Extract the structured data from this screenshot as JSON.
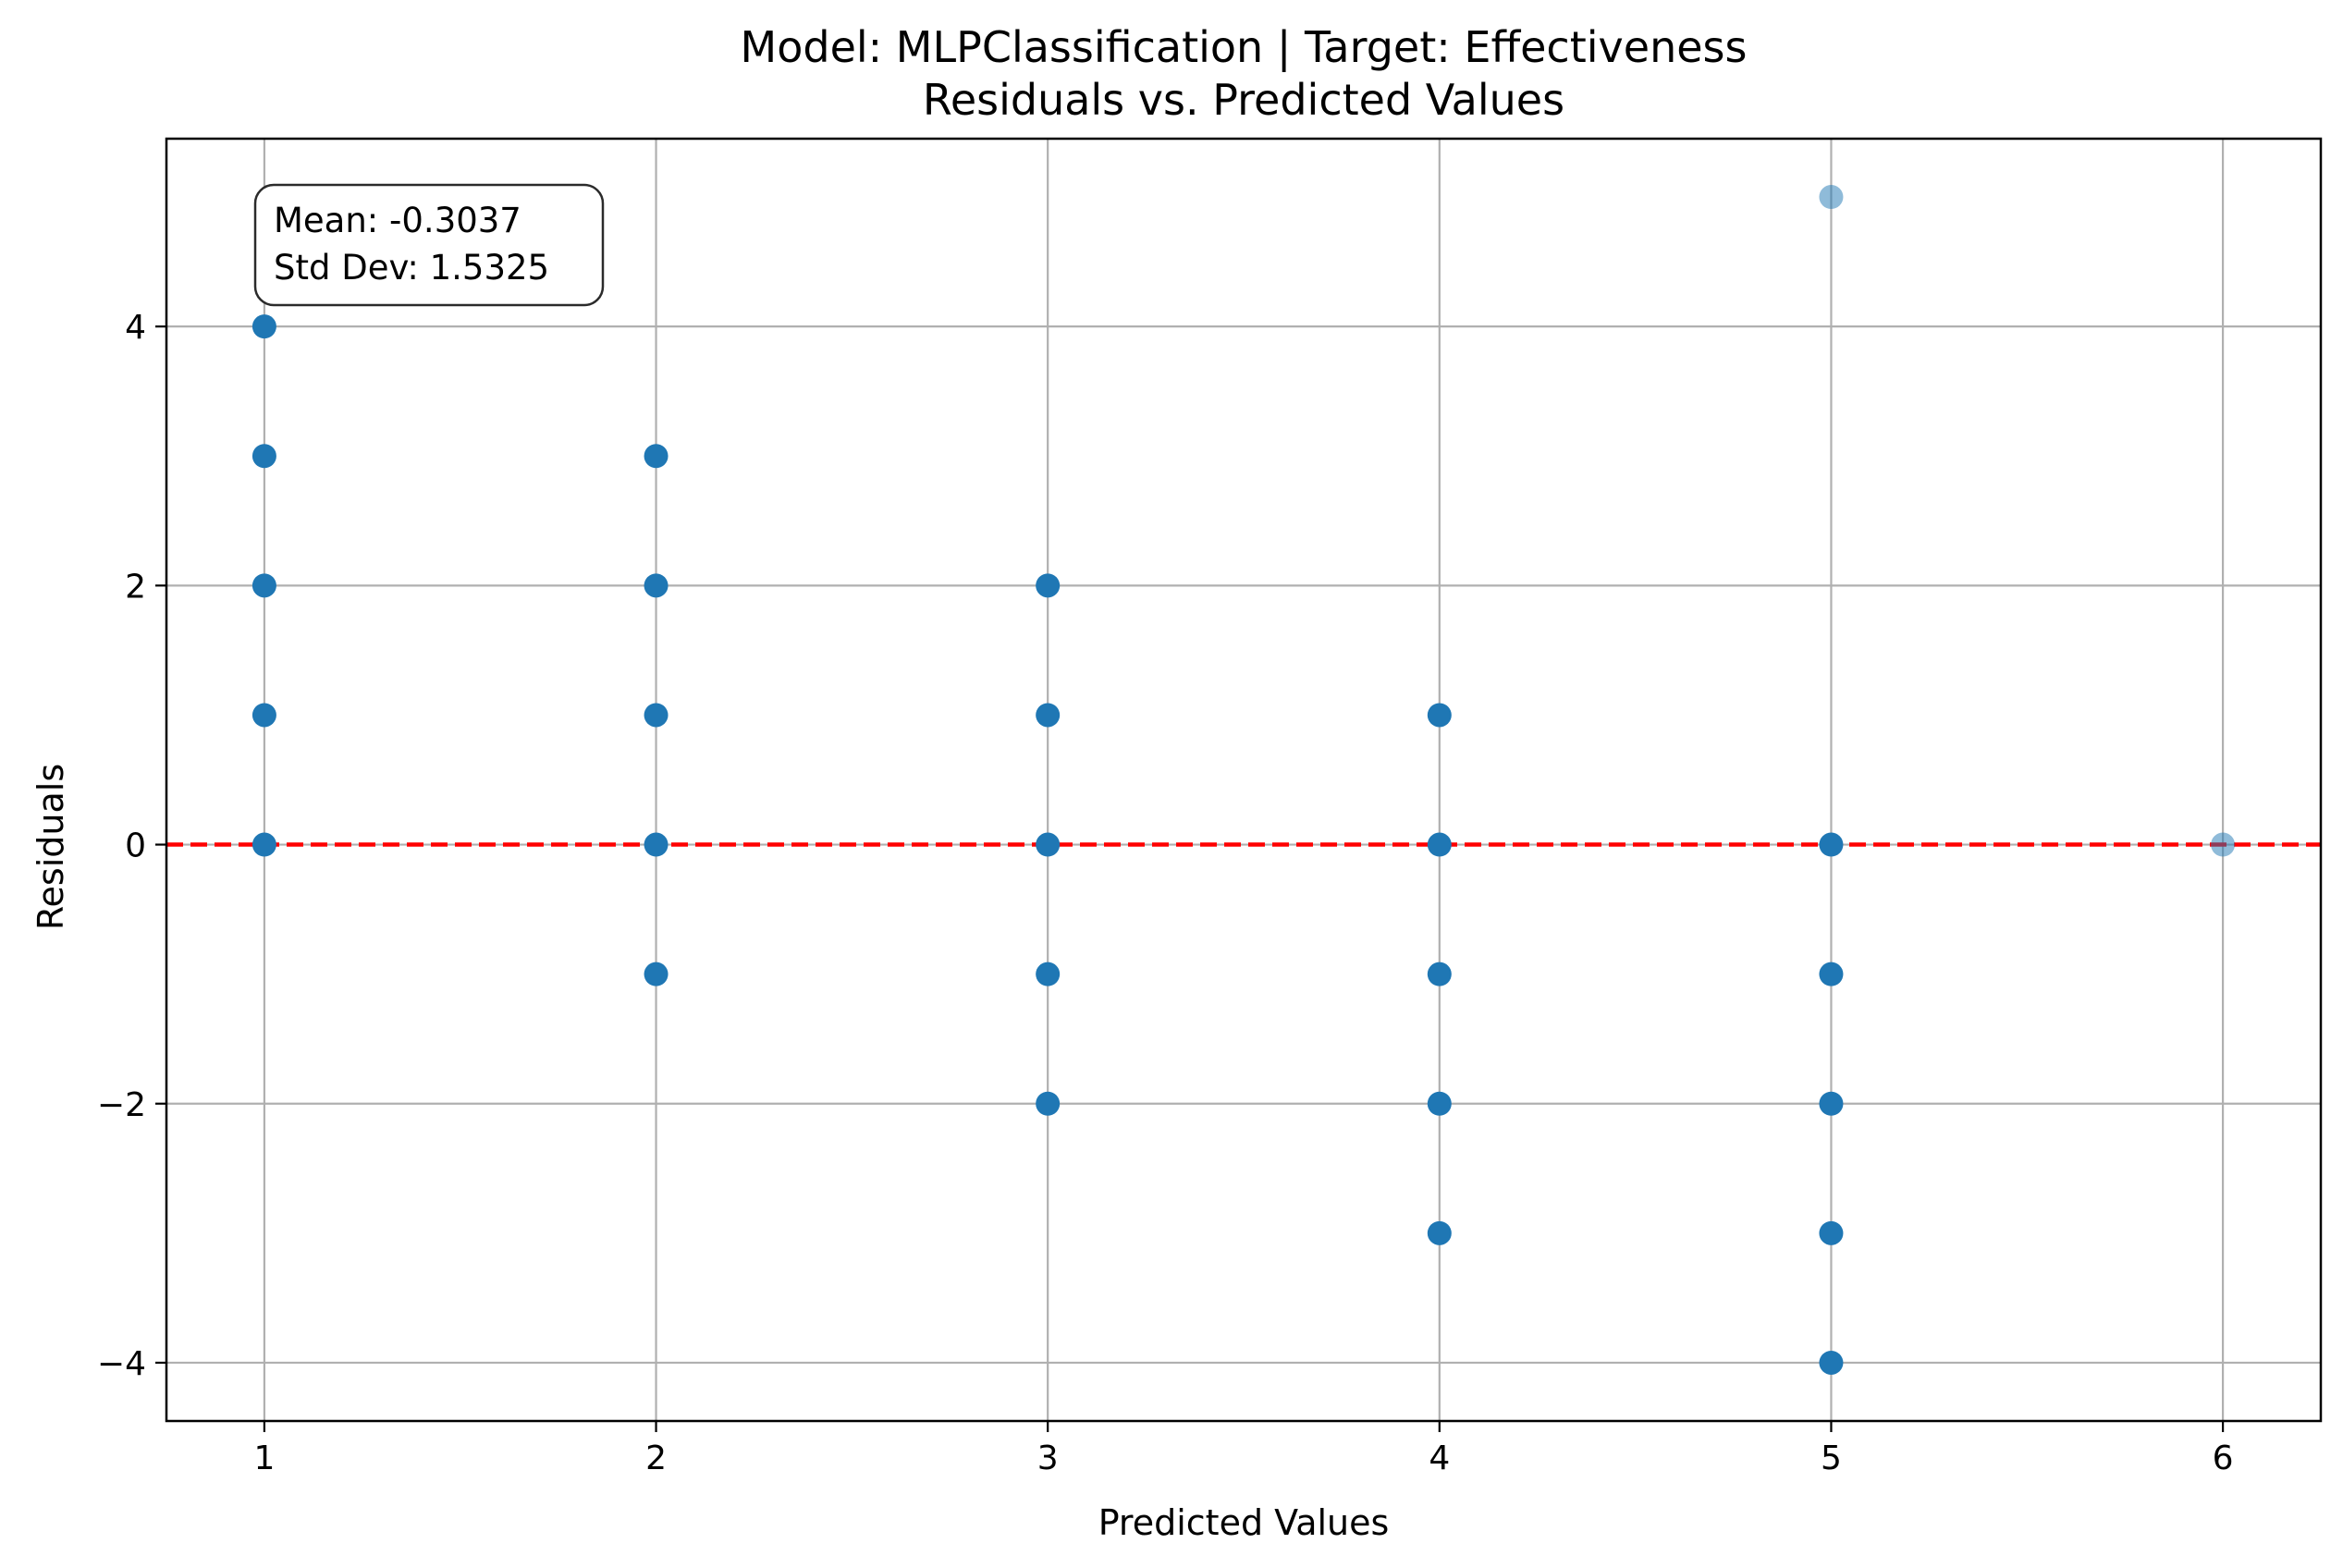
{
  "chart_data": {
    "type": "scatter",
    "title": "Model: MLPClassification | Target: Effectiveness",
    "subtitle": "Residuals vs. Predicted Values",
    "xlabel": "Predicted Values",
    "ylabel": "Residuals",
    "xlim": [
      0.75,
      6.25
    ],
    "ylim": [
      -4.45,
      5.45
    ],
    "xticks": [
      1,
      2,
      3,
      4,
      5,
      6
    ],
    "yticks": [
      -4,
      -2,
      0,
      2,
      4
    ],
    "xtick_labels": [
      "1",
      "2",
      "3",
      "4",
      "5",
      "6"
    ],
    "ytick_labels": [
      "−4",
      "−2",
      "0",
      "2",
      "4"
    ],
    "grid": true,
    "marker_color": "#1f77b4",
    "reference_line": {
      "y": 0,
      "color": "#ff0000",
      "style": "dashed"
    },
    "stats_box": {
      "mean_text": "Mean: -0.3037",
      "std_text": "Std Dev: 1.5325",
      "placement": "top-left"
    },
    "points": [
      {
        "x": 1,
        "y": 4,
        "dense": true
      },
      {
        "x": 1,
        "y": 3,
        "dense": true
      },
      {
        "x": 1,
        "y": 2,
        "dense": true
      },
      {
        "x": 1,
        "y": 1,
        "dense": true
      },
      {
        "x": 1,
        "y": 0,
        "dense": true
      },
      {
        "x": 2,
        "y": 3,
        "dense": true
      },
      {
        "x": 2,
        "y": 2,
        "dense": true
      },
      {
        "x": 2,
        "y": 1,
        "dense": true
      },
      {
        "x": 2,
        "y": 0,
        "dense": true
      },
      {
        "x": 2,
        "y": -1,
        "dense": true
      },
      {
        "x": 3,
        "y": 2,
        "dense": true
      },
      {
        "x": 3,
        "y": 1,
        "dense": true
      },
      {
        "x": 3,
        "y": 0,
        "dense": true
      },
      {
        "x": 3,
        "y": -1,
        "dense": true
      },
      {
        "x": 3,
        "y": -2,
        "dense": true
      },
      {
        "x": 4,
        "y": 1,
        "dense": true
      },
      {
        "x": 4,
        "y": 0,
        "dense": true
      },
      {
        "x": 4,
        "y": -1,
        "dense": true
      },
      {
        "x": 4,
        "y": -2,
        "dense": true
      },
      {
        "x": 4,
        "y": -3,
        "dense": true
      },
      {
        "x": 5,
        "y": 5,
        "dense": false
      },
      {
        "x": 5,
        "y": 0,
        "dense": true
      },
      {
        "x": 5,
        "y": -1,
        "dense": true
      },
      {
        "x": 5,
        "y": -2,
        "dense": true
      },
      {
        "x": 5,
        "y": -3,
        "dense": true
      },
      {
        "x": 5,
        "y": -4,
        "dense": true
      },
      {
        "x": 6,
        "y": 0,
        "dense": false
      }
    ]
  }
}
